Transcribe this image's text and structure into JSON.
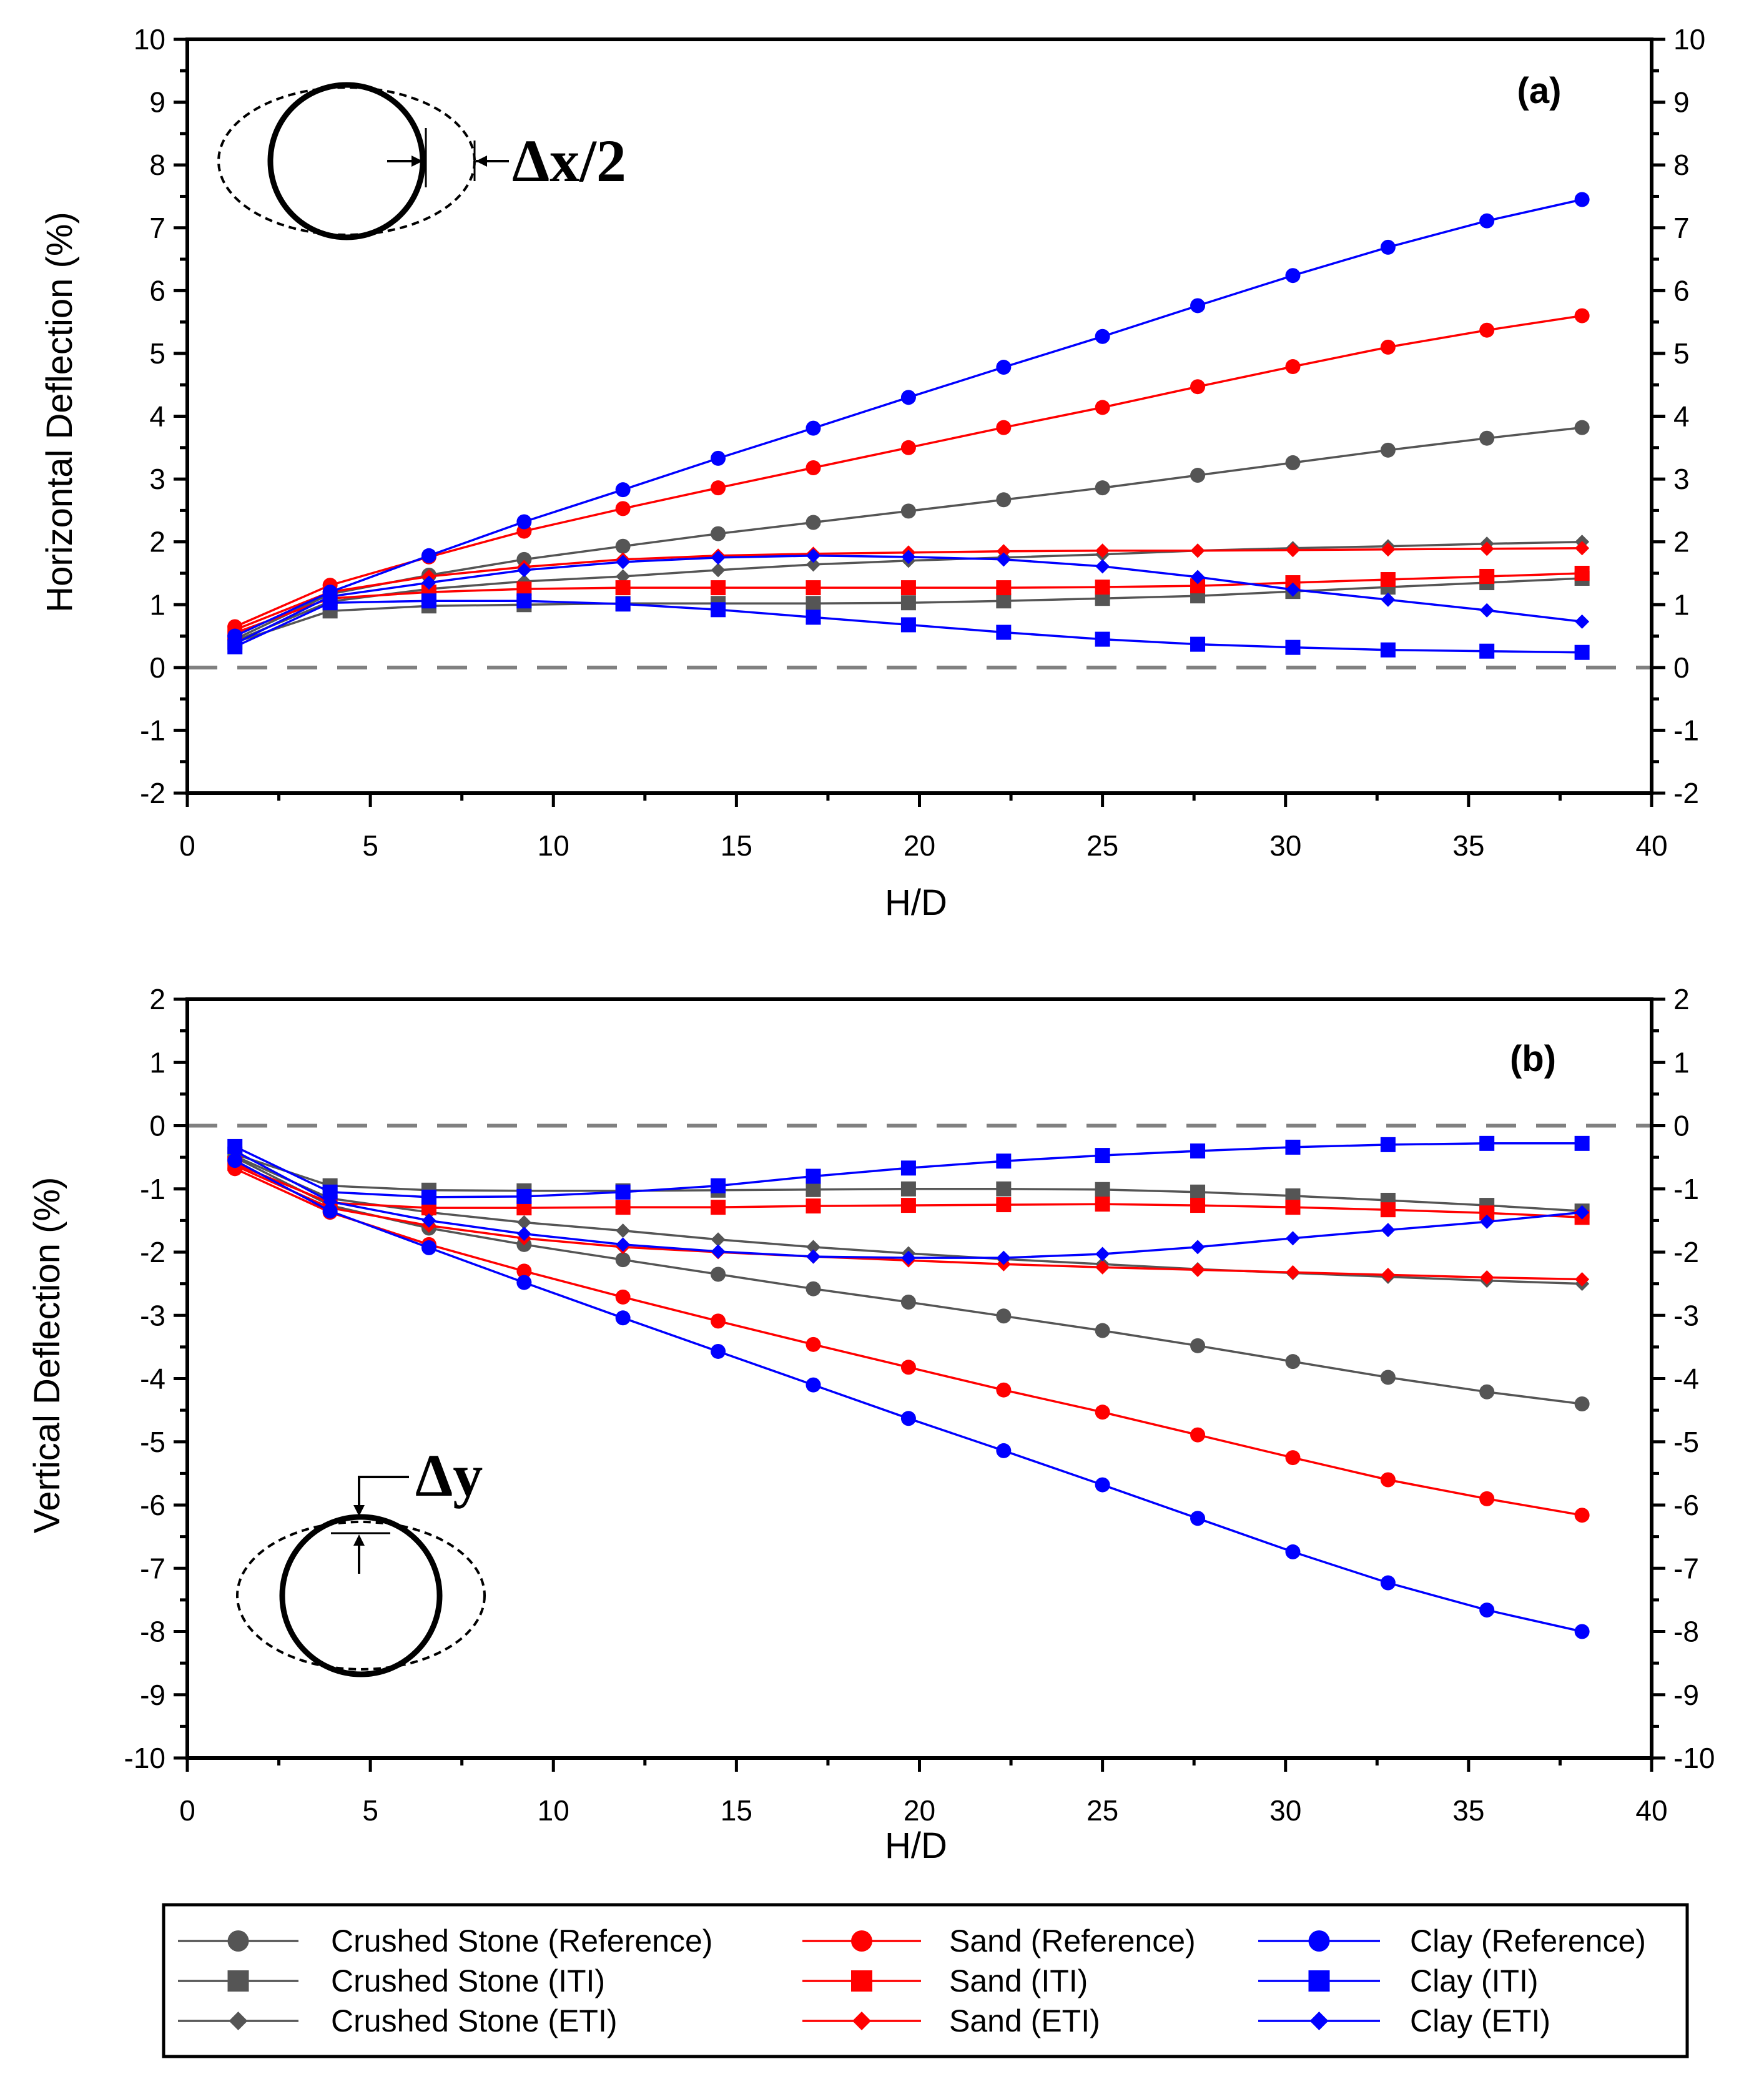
{
  "chart_data": [
    {
      "type": "line",
      "panel_label": "(a)",
      "xlabel": "H/D",
      "ylabel": "Horizontal Deflection (%)",
      "xlim": [
        0,
        40
      ],
      "ylim": [
        -2,
        10
      ],
      "xticks": [
        "0",
        "5",
        "10",
        "15",
        "20",
        "25",
        "30",
        "35",
        "40"
      ],
      "yticks": [
        "-2",
        "-1",
        "0",
        "1",
        "2",
        "3",
        "4",
        "5",
        "6",
        "7",
        "8",
        "9",
        "10"
      ],
      "reference_line": 0,
      "annotation": "Δx/2",
      "x": [
        1.3,
        3.9,
        6.6,
        9.2,
        11.9,
        14.5,
        17.1,
        19.7,
        22.3,
        25.0,
        27.6,
        30.2,
        32.8,
        35.5,
        38.1
      ],
      "series": [
        {
          "name": "Crushed Stone (Reference)",
          "values": [
            0.45,
            1.17,
            1.47,
            1.72,
            1.93,
            2.13,
            2.31,
            2.49,
            2.67,
            2.86,
            3.06,
            3.26,
            3.46,
            3.65,
            3.82
          ]
        },
        {
          "name": "Crushed Stone (ITI)",
          "values": [
            0.4,
            0.9,
            0.98,
            1.0,
            1.02,
            1.02,
            1.02,
            1.03,
            1.06,
            1.1,
            1.14,
            1.21,
            1.28,
            1.35,
            1.42
          ]
        },
        {
          "name": "Crushed Stone (ETI)",
          "values": [
            0.42,
            1.05,
            1.25,
            1.37,
            1.45,
            1.55,
            1.64,
            1.7,
            1.75,
            1.8,
            1.86,
            1.9,
            1.93,
            1.97,
            2.0
          ]
        },
        {
          "name": "Sand (Reference)",
          "values": [
            0.65,
            1.31,
            1.76,
            2.17,
            2.53,
            2.86,
            3.18,
            3.5,
            3.82,
            4.14,
            4.47,
            4.79,
            5.1,
            5.37,
            5.6
          ]
        },
        {
          "name": "Sand (ITI)",
          "values": [
            0.55,
            1.1,
            1.2,
            1.25,
            1.27,
            1.27,
            1.27,
            1.27,
            1.27,
            1.28,
            1.3,
            1.35,
            1.4,
            1.45,
            1.5
          ]
        },
        {
          "name": "Sand (ETI)",
          "values": [
            0.6,
            1.2,
            1.45,
            1.6,
            1.72,
            1.78,
            1.81,
            1.83,
            1.85,
            1.86,
            1.86,
            1.87,
            1.88,
            1.89,
            1.9
          ]
        },
        {
          "name": "Clay (Reference)",
          "values": [
            0.5,
            1.2,
            1.78,
            2.32,
            2.83,
            3.33,
            3.81,
            4.3,
            4.78,
            5.27,
            5.76,
            6.24,
            6.69,
            7.11,
            7.45
          ]
        },
        {
          "name": "Clay (ITI)",
          "values": [
            0.33,
            1.03,
            1.06,
            1.06,
            1.01,
            0.92,
            0.8,
            0.68,
            0.56,
            0.45,
            0.37,
            0.32,
            0.28,
            0.26,
            0.24
          ]
        },
        {
          "name": "Clay (ETI)",
          "values": [
            0.38,
            1.13,
            1.35,
            1.55,
            1.68,
            1.75,
            1.78,
            1.76,
            1.72,
            1.61,
            1.44,
            1.24,
            1.08,
            0.91,
            0.73
          ]
        }
      ]
    },
    {
      "type": "line",
      "panel_label": "(b)",
      "xlabel": "H/D",
      "ylabel": "Vertical Deflection (%)",
      "xlim": [
        0,
        40
      ],
      "ylim": [
        -10,
        2
      ],
      "xticks": [
        "0",
        "5",
        "10",
        "15",
        "20",
        "25",
        "30",
        "35",
        "40"
      ],
      "yticks": [
        "-10",
        "-9",
        "-8",
        "-7",
        "-6",
        "-5",
        "-4",
        "-3",
        "-2",
        "-1",
        "0",
        "1",
        "2"
      ],
      "reference_line": 0,
      "annotation": "Δy",
      "x": [
        1.3,
        3.9,
        6.6,
        9.2,
        11.9,
        14.5,
        17.1,
        19.7,
        22.3,
        25.0,
        27.6,
        30.2,
        32.8,
        35.5,
        38.1
      ],
      "series": [
        {
          "name": "Crushed Stone (Reference)",
          "values": [
            -0.5,
            -1.26,
            -1.62,
            -1.88,
            -2.12,
            -2.35,
            -2.58,
            -2.79,
            -3.01,
            -3.24,
            -3.48,
            -3.73,
            -3.98,
            -4.21,
            -4.4
          ]
        },
        {
          "name": "Crushed Stone (ITI)",
          "values": [
            -0.45,
            -0.95,
            -1.02,
            -1.03,
            -1.03,
            -1.02,
            -1.01,
            -1.0,
            -1.0,
            -1.01,
            -1.05,
            -1.11,
            -1.18,
            -1.26,
            -1.35
          ]
        },
        {
          "name": "Crushed Stone (ETI)",
          "values": [
            -0.48,
            -1.15,
            -1.37,
            -1.53,
            -1.66,
            -1.8,
            -1.92,
            -2.02,
            -2.11,
            -2.19,
            -2.27,
            -2.33,
            -2.39,
            -2.45,
            -2.5
          ]
        },
        {
          "name": "Sand (Reference)",
          "values": [
            -0.68,
            -1.37,
            -1.88,
            -2.3,
            -2.71,
            -3.09,
            -3.46,
            -3.82,
            -4.18,
            -4.53,
            -4.89,
            -5.25,
            -5.6,
            -5.9,
            -6.16
          ]
        },
        {
          "name": "Sand (ITI)",
          "values": [
            -0.6,
            -1.22,
            -1.3,
            -1.3,
            -1.29,
            -1.29,
            -1.27,
            -1.26,
            -1.25,
            -1.24,
            -1.26,
            -1.29,
            -1.33,
            -1.38,
            -1.45
          ]
        },
        {
          "name": "Sand (ETI)",
          "values": [
            -0.63,
            -1.3,
            -1.58,
            -1.78,
            -1.92,
            -2.0,
            -2.07,
            -2.13,
            -2.19,
            -2.24,
            -2.28,
            -2.32,
            -2.36,
            -2.4,
            -2.43
          ]
        },
        {
          "name": "Clay (Reference)",
          "values": [
            -0.55,
            -1.35,
            -1.93,
            -2.48,
            -3.04,
            -3.57,
            -4.1,
            -4.63,
            -5.14,
            -5.68,
            -6.21,
            -6.74,
            -7.23,
            -7.66,
            -8.0
          ]
        },
        {
          "name": "Clay (ITI)",
          "values": [
            -0.33,
            -1.05,
            -1.13,
            -1.12,
            -1.05,
            -0.95,
            -0.8,
            -0.67,
            -0.56,
            -0.47,
            -0.4,
            -0.34,
            -0.3,
            -0.28,
            -0.28
          ]
        },
        {
          "name": "Clay (ETI)",
          "values": [
            -0.4,
            -1.2,
            -1.5,
            -1.71,
            -1.88,
            -1.99,
            -2.07,
            -2.09,
            -2.09,
            -2.03,
            -1.92,
            -1.78,
            -1.65,
            -1.52,
            -1.37
          ]
        }
      ]
    }
  ],
  "legend": [
    {
      "label": "Crushed Stone (Reference)",
      "color": "#555555",
      "marker": "circle"
    },
    {
      "label": "Crushed Stone (ITI)",
      "color": "#555555",
      "marker": "square"
    },
    {
      "label": "Crushed Stone (ETI)",
      "color": "#555555",
      "marker": "diamond"
    },
    {
      "label": "Sand (Reference)",
      "color": "#ff0000",
      "marker": "circle"
    },
    {
      "label": "Sand (ITI)",
      "color": "#ff0000",
      "marker": "square"
    },
    {
      "label": "Sand (ETI)",
      "color": "#ff0000",
      "marker": "diamond"
    },
    {
      "label": "Clay (Reference)",
      "color": "#0000ff",
      "marker": "circle"
    },
    {
      "label": "Clay (ITI)",
      "color": "#0000ff",
      "marker": "square"
    },
    {
      "label": "Clay (ETI)",
      "color": "#0000ff",
      "marker": "diamond"
    }
  ]
}
